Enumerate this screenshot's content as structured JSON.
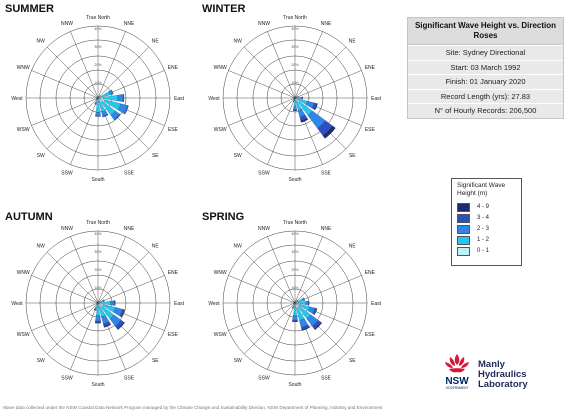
{
  "info_box": {
    "title": "Significant Wave Height vs. Direction Roses",
    "site": "Site:    Sydney Directional",
    "start": "Start:    03 March 1992",
    "finish": "Finish:    01 January 2020",
    "record_length": "Record Length (yrs):  27.83",
    "records": "N° of Hourly Records:  206,500"
  },
  "legend": {
    "title": "Significant Wave Height (m)",
    "items": [
      {
        "label": "4 - 9",
        "color": "#1c2a6e"
      },
      {
        "label": "3 - 4",
        "color": "#2b4fc4"
      },
      {
        "label": "2 - 3",
        "color": "#2f86e8"
      },
      {
        "label": "1 - 2",
        "color": "#24c8ee"
      },
      {
        "label": "0 - 1",
        "color": "#b9f2fb"
      }
    ]
  },
  "logo": {
    "line1": "Manly",
    "line2": "Hydraulics",
    "line3": "Laboratory",
    "mark_text": "NSW",
    "mark_sub": "GOVERNMENT"
  },
  "footer": "Wave data collected under the NSW Coastal Data Network Program managed by the Climate Change and Sustainability Division, NSW Department of Planning, Industry and Environment",
  "chart_data": [
    {
      "type": "wind-rose",
      "title": "SUMMER",
      "directions": [
        "True North",
        "NNE",
        "NE",
        "ENE",
        "East",
        "ESE",
        "SE",
        "SSE",
        "South",
        "SSW",
        "SW",
        "WSW",
        "West",
        "WNW",
        "NW",
        "NNW"
      ],
      "radial_ticks": [
        "10%",
        "20%",
        "30%",
        "40%"
      ],
      "rlim": [
        0,
        40
      ],
      "bins": [
        "0 - 1",
        "1 - 2",
        "2 - 3",
        "3 - 4",
        "4 - 9"
      ],
      "values": [
        [
          0.2,
          0.3,
          0.1,
          0,
          0
        ],
        [
          0.3,
          0.5,
          0.1,
          0,
          0
        ],
        [
          0.5,
          1.0,
          0.3,
          0,
          0
        ],
        [
          2,
          5,
          1.5,
          0.3,
          0
        ],
        [
          3,
          8,
          3,
          0.5,
          0
        ],
        [
          4,
          9,
          4,
          0.5,
          0
        ],
        [
          3,
          9,
          3,
          0.5,
          0
        ],
        [
          2,
          6,
          2.5,
          0.5,
          0
        ],
        [
          2,
          6,
          2,
          0.3,
          0
        ],
        [
          0.8,
          2,
          0.8,
          0.2,
          0
        ],
        [
          0.3,
          0.8,
          0.3,
          0,
          0
        ],
        [
          0.2,
          0.3,
          0.1,
          0,
          0
        ],
        [
          0.1,
          0.2,
          0,
          0,
          0
        ],
        [
          0,
          0.1,
          0,
          0,
          0
        ],
        [
          0,
          0.1,
          0,
          0,
          0
        ],
        [
          0.1,
          0.2,
          0,
          0,
          0
        ]
      ]
    },
    {
      "type": "wind-rose",
      "title": "WINTER",
      "directions": [
        "True North",
        "NNE",
        "NE",
        "ENE",
        "East",
        "ESE",
        "SE",
        "SSE",
        "South",
        "SSW",
        "SW",
        "WSW",
        "West",
        "WNW",
        "NW",
        "NNW"
      ],
      "radial_ticks": [
        "10%",
        "20%",
        "30%",
        "40%"
      ],
      "rlim": [
        0,
        40
      ],
      "bins": [
        "0 - 1",
        "1 - 2",
        "2 - 3",
        "3 - 4",
        "4 - 9"
      ],
      "values": [
        [
          0.2,
          0.3,
          0.1,
          0,
          0
        ],
        [
          0.2,
          0.3,
          0.1,
          0,
          0
        ],
        [
          0.3,
          0.5,
          0.2,
          0,
          0
        ],
        [
          0.5,
          1,
          0.4,
          0.1,
          0
        ],
        [
          1,
          2,
          1,
          0.3,
          0.1
        ],
        [
          2,
          5,
          4,
          1.5,
          0.5
        ],
        [
          3,
          9,
          9,
          5,
          2
        ],
        [
          2,
          5,
          4,
          2,
          1
        ],
        [
          1.5,
          3,
          2,
          0.5,
          0.2
        ],
        [
          0.5,
          1,
          0.5,
          0.2,
          0
        ],
        [
          0.3,
          0.5,
          0.2,
          0,
          0
        ],
        [
          0.2,
          0.4,
          0.1,
          0,
          0
        ],
        [
          0.2,
          0.3,
          0.1,
          0,
          0
        ],
        [
          0.1,
          0.2,
          0,
          0,
          0
        ],
        [
          0.1,
          0.1,
          0,
          0,
          0
        ],
        [
          0.1,
          0.2,
          0,
          0,
          0
        ]
      ]
    },
    {
      "type": "wind-rose",
      "title": "AUTUMN",
      "directions": [
        "True North",
        "NNE",
        "NE",
        "ENE",
        "East",
        "ESE",
        "SE",
        "SSE",
        "South",
        "SSW",
        "SW",
        "WSW",
        "West",
        "WNW",
        "NW",
        "NNW"
      ],
      "radial_ticks": [
        "10%",
        "20%",
        "30%",
        "40%"
      ],
      "rlim": [
        0,
        40
      ],
      "bins": [
        "0 - 1",
        "1 - 2",
        "2 - 3",
        "3 - 4",
        "4 - 9"
      ],
      "values": [
        [
          0.2,
          0.3,
          0.1,
          0,
          0
        ],
        [
          0.3,
          0.5,
          0.1,
          0,
          0
        ],
        [
          0.5,
          0.8,
          0.2,
          0,
          0
        ],
        [
          1,
          2,
          0.6,
          0.1,
          0
        ],
        [
          2,
          5,
          2,
          0.5,
          0.1
        ],
        [
          3,
          7,
          4,
          1,
          0.3
        ],
        [
          3,
          8,
          5,
          2,
          0.5
        ],
        [
          2,
          6,
          4,
          1.5,
          0.5
        ],
        [
          2,
          5,
          3,
          1,
          0.3
        ],
        [
          1,
          2,
          1,
          0.3,
          0.1
        ],
        [
          0.3,
          0.6,
          0.2,
          0,
          0
        ],
        [
          0.2,
          0.3,
          0.1,
          0,
          0
        ],
        [
          0.1,
          0.2,
          0,
          0,
          0
        ],
        [
          0.1,
          0.1,
          0,
          0,
          0
        ],
        [
          0.1,
          0.1,
          0,
          0,
          0
        ],
        [
          0.1,
          0.2,
          0,
          0,
          0
        ]
      ]
    },
    {
      "type": "wind-rose",
      "title": "SPRING",
      "directions": [
        "True North",
        "NNE",
        "NE",
        "ENE",
        "East",
        "ESE",
        "SE",
        "SSE",
        "South",
        "SSW",
        "SW",
        "WSW",
        "West",
        "WNW",
        "NW",
        "NNW"
      ],
      "radial_ticks": [
        "10%",
        "20%",
        "30%",
        "40%"
      ],
      "rlim": [
        0,
        40
      ],
      "bins": [
        "0 - 1",
        "1 - 2",
        "2 - 3",
        "3 - 4",
        "4 - 9"
      ],
      "values": [
        [
          0.2,
          0.3,
          0.1,
          0,
          0
        ],
        [
          0.4,
          0.6,
          0.1,
          0,
          0
        ],
        [
          0.7,
          1.2,
          0.3,
          0,
          0
        ],
        [
          1.5,
          3,
          1,
          0.2,
          0
        ],
        [
          2,
          4,
          1.5,
          0.4,
          0
        ],
        [
          2.5,
          6,
          3,
          1,
          0.2
        ],
        [
          3,
          8,
          5,
          2,
          0.6
        ],
        [
          3,
          7,
          4,
          1.5,
          0.4
        ],
        [
          2,
          5,
          2.5,
          0.8,
          0.2
        ],
        [
          0.8,
          1.5,
          0.6,
          0.2,
          0
        ],
        [
          0.3,
          0.5,
          0.2,
          0,
          0
        ],
        [
          0.2,
          0.3,
          0.1,
          0,
          0
        ],
        [
          0.1,
          0.2,
          0,
          0,
          0
        ],
        [
          0.1,
          0.1,
          0,
          0,
          0
        ],
        [
          0.1,
          0.1,
          0,
          0,
          0
        ],
        [
          0.1,
          0.2,
          0,
          0,
          0
        ]
      ]
    }
  ]
}
